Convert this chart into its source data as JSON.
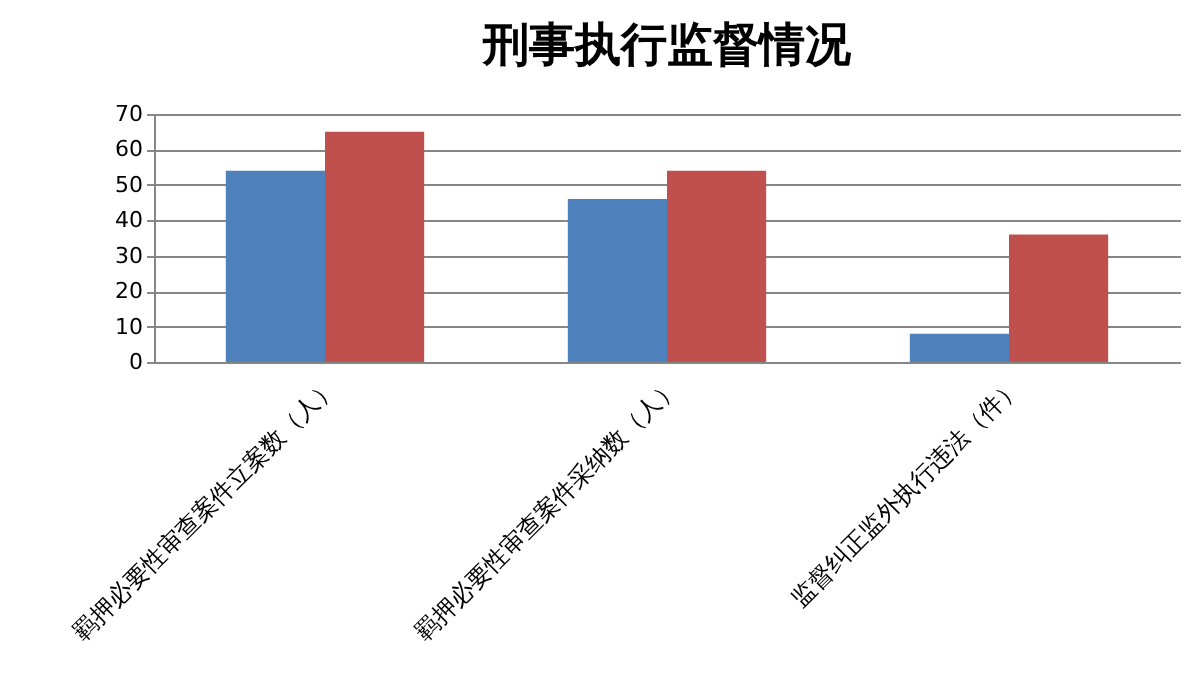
{
  "chart_data": {
    "type": "bar",
    "title": "刑事执行监督情况",
    "categories": [
      "羁押必要性审查案件立案数（人）",
      "羁押必要性审查案件采纳数（人）",
      "监督纠正监外执行违法（件）"
    ],
    "series": [
      {
        "color": "#4f81bd",
        "values": [
          54,
          46,
          8
        ]
      },
      {
        "color": "#c0504d",
        "values": [
          65,
          54,
          36
        ]
      }
    ],
    "ylim": [
      0,
      70
    ],
    "yticks": [
      0,
      10,
      20,
      30,
      40,
      50,
      60,
      70
    ],
    "grid": "y",
    "legend": false
  }
}
